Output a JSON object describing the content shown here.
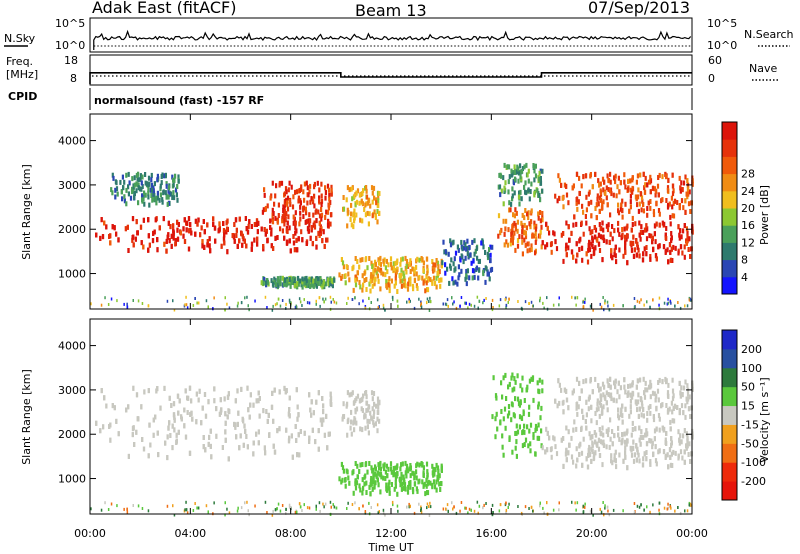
{
  "header": {
    "station": "Adak East (fitACF)",
    "beam": "Beam 13",
    "date": "07/Sep/2013"
  },
  "strips": {
    "sky_label": "N.Sky",
    "sky_ticks": [
      "10^5",
      "10^0"
    ],
    "search_label": "N.Search",
    "search_ticks": [
      "10^5",
      "10^0"
    ],
    "freq_label_line1": "Freq.",
    "freq_label_line2": "[MHz]",
    "freq_ticks": [
      "18",
      "8"
    ],
    "nave_label": "Nave",
    "nave_ticks": [
      "60",
      "0"
    ],
    "cpid_label": "CPID",
    "cpid_text": "normalsound (fast) -157 RF"
  },
  "axes": {
    "xlabel": "Time UT",
    "x_ticks": [
      "00:00",
      "04:00",
      "08:00",
      "12:00",
      "16:00",
      "20:00",
      "00:00"
    ],
    "ylabel": "Slant Range [km]",
    "y_ticks": [
      "1000",
      "2000",
      "3000",
      "4000"
    ]
  },
  "colorbars": {
    "power": {
      "label": "Power [dB]",
      "ticks": [
        "4",
        "8",
        "12",
        "16",
        "20",
        "24",
        "28"
      ],
      "colors": [
        "#1414ff",
        "#2a46b4",
        "#2e7a6e",
        "#4aa05a",
        "#8cc832",
        "#f0be1e",
        "#f08c14",
        "#f05a0a",
        "#e6320a",
        "#dc140a"
      ]
    },
    "velocity": {
      "label": "Velocity [m s⁻¹]",
      "ticks": [
        "200",
        "100",
        "50",
        "15",
        "-15",
        "-50",
        "-100",
        "-200"
      ],
      "colors": [
        "#1e28c8",
        "#2850a0",
        "#2d7a3c",
        "#5ac83c",
        "#c8c8c0",
        "#f0a01e",
        "#f06e14",
        "#ee2a0a",
        "#e6140a"
      ]
    }
  },
  "chart_data": {
    "type": "heatmap",
    "x_range_ut_hours": [
      0,
      24
    ],
    "y_range_km": [
      200,
      4600
    ],
    "frequency_mhz": [
      {
        "from": 0.0,
        "to": 10.0,
        "value": 12.0
      },
      {
        "from": 10.0,
        "to": 18.0,
        "value": 10.5
      },
      {
        "from": 18.0,
        "to": 24.0,
        "value": 12.0
      }
    ],
    "power_regions": [
      {
        "t0": 0.2,
        "t1": 9.5,
        "r0": 1550,
        "r1": 2300,
        "db": 28
      },
      {
        "t0": 6.8,
        "t1": 9.6,
        "r0": 2000,
        "r1": 3100,
        "db": 26
      },
      {
        "t0": 0.8,
        "t1": 3.5,
        "r0": 2600,
        "r1": 3300,
        "db": 8
      },
      {
        "t0": 10.0,
        "t1": 11.5,
        "r0": 2100,
        "r1": 3000,
        "db": 18
      },
      {
        "t0": 6.8,
        "t1": 9.7,
        "r0": 750,
        "r1": 950,
        "db": 10
      },
      {
        "t0": 9.9,
        "t1": 14.0,
        "r0": 650,
        "r1": 1400,
        "db": 18
      },
      {
        "t0": 14.0,
        "t1": 16.0,
        "r0": 800,
        "r1": 1800,
        "db": 6
      },
      {
        "t0": 16.2,
        "t1": 18.0,
        "r0": 1500,
        "r1": 2500,
        "db": 22
      },
      {
        "t0": 16.2,
        "t1": 18.0,
        "r0": 2600,
        "r1": 3500,
        "db": 10
      },
      {
        "t0": 18.0,
        "t1": 24.0,
        "r0": 1300,
        "r1": 2200,
        "db": 28
      },
      {
        "t0": 18.5,
        "t1": 24.0,
        "r0": 2300,
        "r1": 3300,
        "db": 24
      }
    ],
    "velocity_regions": [
      {
        "t0": 0.2,
        "t1": 9.6,
        "r0": 1500,
        "r1": 3100,
        "v": 0
      },
      {
        "t0": 10.0,
        "t1": 11.5,
        "r0": 2000,
        "r1": 3000,
        "v": 0
      },
      {
        "t0": 9.9,
        "t1": 14.0,
        "r0": 700,
        "r1": 1400,
        "v": 40
      },
      {
        "t0": 16.0,
        "t1": 18.0,
        "r0": 1500,
        "r1": 3400,
        "v": 40
      },
      {
        "t0": 18.0,
        "t1": 24.0,
        "r0": 1300,
        "r1": 2200,
        "v": 0
      },
      {
        "t0": 18.5,
        "t1": 24.0,
        "r0": 2300,
        "r1": 3300,
        "v": 0
      }
    ]
  }
}
